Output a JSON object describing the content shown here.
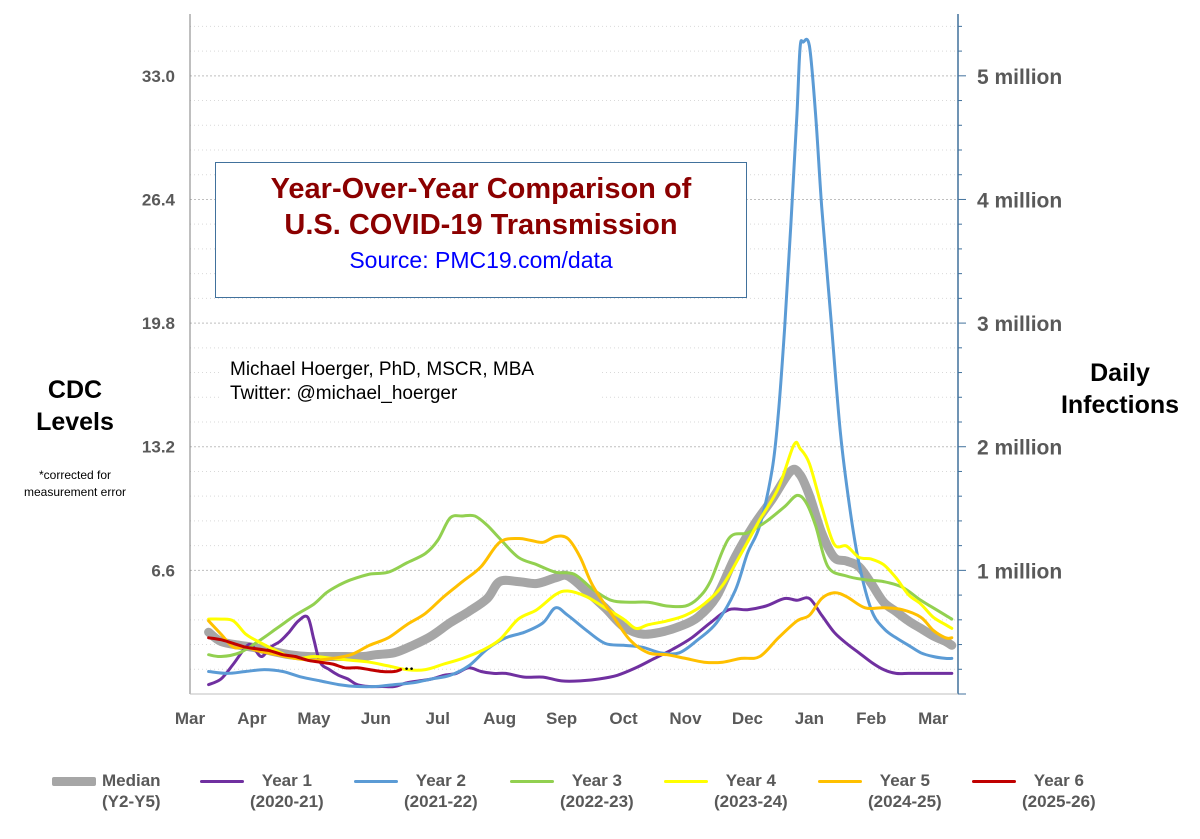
{
  "chart_data": {
    "type": "line",
    "title": "Year-Over-Year Comparison of U.S. COVID-19 Transmission",
    "title_line1": "Year-Over-Year Comparison of",
    "title_line2": "U.S. COVID-19 Transmission",
    "source": "Source: PMC19.com/data",
    "author_line1": "Michael Hoerger, PhD, MSCR, MBA",
    "author_line2": "Twitter: @michael_hoerger",
    "ylabel_left_line1": "CDC",
    "ylabel_left_line2": "Levels",
    "ylabel_left_note": "*corrected for measurement error",
    "ylabel_right_line1": "Daily",
    "ylabel_right_line2": "Infections",
    "x_ticks": [
      "Mar",
      "Apr",
      "May",
      "Jun",
      "Jul",
      "Aug",
      "Sep",
      "Oct",
      "Nov",
      "Dec",
      "Jan",
      "Feb",
      "Mar"
    ],
    "x_range": [
      0,
      12.4
    ],
    "y_left_ticks": [
      "6.6",
      "13.2",
      "19.8",
      "26.4",
      "33.0"
    ],
    "y_left_values": [
      6.6,
      13.2,
      19.8,
      26.4,
      33.0
    ],
    "y_left_range": [
      0,
      36.3
    ],
    "y_right_ticks": [
      "1 million",
      "2 million",
      "3 million",
      "4 million",
      "5 million"
    ],
    "y_right_values": [
      6.6,
      13.2,
      19.8,
      26.4,
      33.0
    ],
    "grid": true,
    "legend_position": "bottom",
    "series": [
      {
        "name": "Median",
        "name_line2": "(Y2-Y5)",
        "color": "#a6a6a6",
        "width": 9,
        "x": [
          0.3,
          0.5,
          0.8,
          1.0,
          1.3,
          1.6,
          1.9,
          2.2,
          2.5,
          2.8,
          3.0,
          3.3,
          3.6,
          3.9,
          4.2,
          4.5,
          4.8,
          5.0,
          5.3,
          5.6,
          5.9,
          6.1,
          6.4,
          6.7,
          7.0,
          7.3,
          7.6,
          7.9,
          8.2,
          8.5,
          8.8,
          9.1,
          9.4,
          9.7,
          9.85,
          10.0,
          10.2,
          10.4,
          10.6,
          10.8,
          11.0,
          11.2,
          11.4,
          11.6,
          11.8,
          12.0,
          12.2,
          12.3
        ],
        "y": [
          3.3,
          2.8,
          2.6,
          2.5,
          2.3,
          2.1,
          2.0,
          2.0,
          2.0,
          2.0,
          2.1,
          2.2,
          2.6,
          3.1,
          3.8,
          4.4,
          5.1,
          6.0,
          6.0,
          5.9,
          6.2,
          6.3,
          5.5,
          4.6,
          3.6,
          3.2,
          3.3,
          3.6,
          4.1,
          5.2,
          7.3,
          9.0,
          10.4,
          11.9,
          11.7,
          10.6,
          8.6,
          7.3,
          7.1,
          6.8,
          5.9,
          4.9,
          4.4,
          3.9,
          3.5,
          3.1,
          2.8,
          2.6
        ]
      },
      {
        "name": "Year 1",
        "name_line2": "(2020-21)",
        "color": "#7030a0",
        "width": 3,
        "x": [
          0.3,
          0.5,
          0.7,
          0.9,
          1.0,
          1.15,
          1.3,
          1.45,
          1.6,
          1.75,
          1.9,
          2.0,
          2.1,
          2.25,
          2.4,
          2.55,
          2.7,
          2.9,
          3.1,
          3.3,
          3.5,
          3.7,
          3.9,
          4.1,
          4.3,
          4.5,
          4.7,
          4.9,
          5.1,
          5.4,
          5.7,
          6.0,
          6.3,
          6.6,
          6.9,
          7.2,
          7.5,
          7.8,
          8.1,
          8.4,
          8.7,
          9.0,
          9.3,
          9.6,
          9.8,
          10.0,
          10.2,
          10.4,
          10.6,
          10.8,
          11.0,
          11.2,
          11.4,
          11.6,
          11.8,
          12.0,
          12.2,
          12.3
        ],
        "y": [
          0.5,
          0.8,
          1.6,
          2.5,
          2.6,
          2.0,
          2.5,
          2.8,
          3.3,
          3.9,
          4.1,
          2.9,
          1.7,
          1.3,
          1.0,
          0.8,
          0.5,
          0.4,
          0.4,
          0.4,
          0.6,
          0.7,
          0.8,
          1.0,
          1.1,
          1.4,
          1.2,
          1.1,
          1.1,
          0.9,
          0.9,
          0.7,
          0.7,
          0.8,
          1.0,
          1.4,
          1.9,
          2.4,
          3.0,
          3.8,
          4.5,
          4.5,
          4.7,
          5.1,
          5.0,
          5.1,
          4.2,
          3.3,
          2.7,
          2.2,
          1.7,
          1.3,
          1.1,
          1.1,
          1.1,
          1.1,
          1.1,
          1.1
        ]
      },
      {
        "name": "Year 2",
        "name_line2": "(2021-22)",
        "color": "#5b9bd5",
        "width": 3,
        "x": [
          0.3,
          0.6,
          0.9,
          1.2,
          1.5,
          1.8,
          2.1,
          2.4,
          2.7,
          3.0,
          3.3,
          3.6,
          3.9,
          4.2,
          4.5,
          4.8,
          5.1,
          5.4,
          5.7,
          5.9,
          6.1,
          6.4,
          6.7,
          7.0,
          7.3,
          7.6,
          7.9,
          8.2,
          8.5,
          8.8,
          9.0,
          9.2,
          9.4,
          9.5,
          9.6,
          9.7,
          9.8,
          9.85,
          9.9,
          10.0,
          10.1,
          10.2,
          10.35,
          10.5,
          10.65,
          10.8,
          11.0,
          11.2,
          11.4,
          11.6,
          11.8,
          12.0,
          12.2,
          12.3
        ],
        "y": [
          1.2,
          1.1,
          1.2,
          1.3,
          1.2,
          0.9,
          0.7,
          0.5,
          0.4,
          0.4,
          0.5,
          0.6,
          0.8,
          1.0,
          1.5,
          2.4,
          3.0,
          3.3,
          3.8,
          4.6,
          4.2,
          3.4,
          2.7,
          2.6,
          2.5,
          2.2,
          2.2,
          2.9,
          3.8,
          5.5,
          7.5,
          9.0,
          12.0,
          15.0,
          19.5,
          25.0,
          31.0,
          34.5,
          34.8,
          34.6,
          31.0,
          26.0,
          20.0,
          14.0,
          10.0,
          7.0,
          4.5,
          3.5,
          3.0,
          2.6,
          2.2,
          2.0,
          1.9,
          1.9
        ]
      },
      {
        "name": "Year 3",
        "name_line2": "(2022-23)",
        "color": "#92d050",
        "width": 3,
        "x": [
          0.3,
          0.5,
          0.8,
          1.1,
          1.4,
          1.7,
          2.0,
          2.2,
          2.4,
          2.6,
          2.9,
          3.2,
          3.5,
          3.8,
          4.0,
          4.2,
          4.4,
          4.6,
          4.8,
          5.0,
          5.3,
          5.6,
          5.9,
          6.2,
          6.5,
          6.8,
          7.1,
          7.4,
          7.7,
          8.0,
          8.2,
          8.4,
          8.7,
          9.0,
          9.3,
          9.6,
          9.8,
          9.95,
          10.1,
          10.3,
          10.6,
          10.9,
          11.2,
          11.5,
          11.8,
          12.0,
          12.2,
          12.3
        ],
        "y": [
          2.1,
          2.0,
          2.2,
          2.8,
          3.5,
          4.2,
          4.8,
          5.4,
          5.8,
          6.1,
          6.4,
          6.5,
          7.0,
          7.5,
          8.2,
          9.4,
          9.5,
          9.5,
          9.0,
          8.3,
          7.3,
          6.9,
          6.5,
          6.4,
          5.6,
          5.0,
          4.9,
          4.9,
          4.7,
          4.7,
          5.1,
          6.0,
          8.3,
          8.6,
          9.2,
          10.0,
          10.6,
          10.2,
          9.0,
          6.8,
          6.3,
          6.1,
          6.0,
          5.7,
          5.0,
          4.6,
          4.2,
          4.0
        ]
      },
      {
        "name": "Year 4",
        "name_line2": "(2023-24)",
        "color": "#ffff00",
        "width": 3,
        "x": [
          0.3,
          0.5,
          0.7,
          0.9,
          1.1,
          1.4,
          1.7,
          2.0,
          2.3,
          2.6,
          2.9,
          3.2,
          3.5,
          3.8,
          4.1,
          4.4,
          4.7,
          5.0,
          5.3,
          5.6,
          5.9,
          6.1,
          6.4,
          6.7,
          7.0,
          7.2,
          7.4,
          7.7,
          8.0,
          8.3,
          8.6,
          8.9,
          9.2,
          9.5,
          9.75,
          9.85,
          10.0,
          10.2,
          10.4,
          10.6,
          10.8,
          11.0,
          11.2,
          11.4,
          11.6,
          11.8,
          12.0,
          12.2,
          12.3
        ],
        "y": [
          4.0,
          4.0,
          3.9,
          3.2,
          2.8,
          2.3,
          1.9,
          2.0,
          1.9,
          1.8,
          1.7,
          1.5,
          1.3,
          1.3,
          1.6,
          1.9,
          2.3,
          2.9,
          4.0,
          4.5,
          5.3,
          5.5,
          5.2,
          4.6,
          4.0,
          3.5,
          3.7,
          3.9,
          4.2,
          4.8,
          5.8,
          7.5,
          9.3,
          11.0,
          13.3,
          13.1,
          12.3,
          10.0,
          8.0,
          7.9,
          7.3,
          7.2,
          6.9,
          6.2,
          5.3,
          4.8,
          4.1,
          3.7,
          3.5
        ]
      },
      {
        "name": "Year 5",
        "name_line2": "(2024-25)",
        "color": "#ffc000",
        "width": 3,
        "x": [
          0.3,
          0.5,
          0.7,
          0.9,
          1.1,
          1.4,
          1.7,
          2.0,
          2.3,
          2.6,
          2.9,
          3.2,
          3.5,
          3.8,
          4.1,
          4.4,
          4.7,
          5.0,
          5.3,
          5.5,
          5.7,
          5.9,
          6.1,
          6.3,
          6.5,
          6.8,
          7.1,
          7.4,
          7.7,
          8.0,
          8.3,
          8.6,
          8.9,
          9.2,
          9.5,
          9.8,
          10.0,
          10.2,
          10.4,
          10.6,
          10.9,
          11.2,
          11.5,
          11.8,
          12.0,
          12.2,
          12.3
        ],
        "y": [
          3.9,
          3.2,
          2.5,
          2.5,
          2.3,
          2.1,
          1.9,
          1.8,
          1.9,
          2.1,
          2.6,
          3.0,
          3.7,
          4.3,
          5.2,
          6.0,
          6.8,
          8.1,
          8.3,
          8.2,
          8.1,
          8.4,
          8.3,
          7.3,
          5.8,
          4.3,
          2.9,
          2.2,
          2.1,
          1.9,
          1.7,
          1.7,
          1.9,
          2.0,
          3.0,
          3.9,
          4.2,
          5.1,
          5.4,
          5.2,
          4.6,
          4.6,
          4.5,
          4.1,
          3.4,
          3.0,
          3.0
        ]
      },
      {
        "name": "Year 6",
        "name_line2": "(2025-26)",
        "color": "#c00000",
        "width": 3,
        "x": [
          0.3,
          0.5,
          0.7,
          0.9,
          1.1,
          1.3,
          1.5,
          1.7,
          1.9,
          2.1,
          2.3,
          2.5,
          2.7,
          2.9,
          3.1,
          3.3,
          3.4
        ],
        "y": [
          3.0,
          2.9,
          2.7,
          2.5,
          2.4,
          2.3,
          2.1,
          2.0,
          1.8,
          1.7,
          1.6,
          1.4,
          1.4,
          1.3,
          1.2,
          1.2,
          1.3
        ]
      }
    ]
  }
}
